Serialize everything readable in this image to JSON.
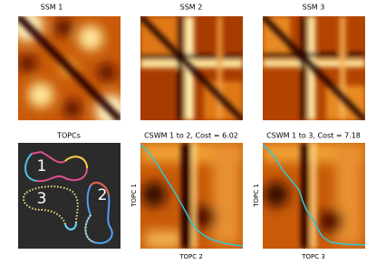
{
  "panels": [
    {
      "title": "SSM 1"
    },
    {
      "title": "SSM 2"
    },
    {
      "title": "SSM 3"
    },
    {
      "title": "TOPCs",
      "labels": [
        "1",
        "3",
        "2"
      ]
    },
    {
      "title": "CSWM 1 to 2, Cost = 6.02",
      "ylabel": "TOPC 1",
      "xlabel": "TOPC 2"
    },
    {
      "title": "CSWM 1 to 3, Cost = 7.18",
      "ylabel": "TOPC 1",
      "xlabel": "TOPC 3"
    }
  ]
}
